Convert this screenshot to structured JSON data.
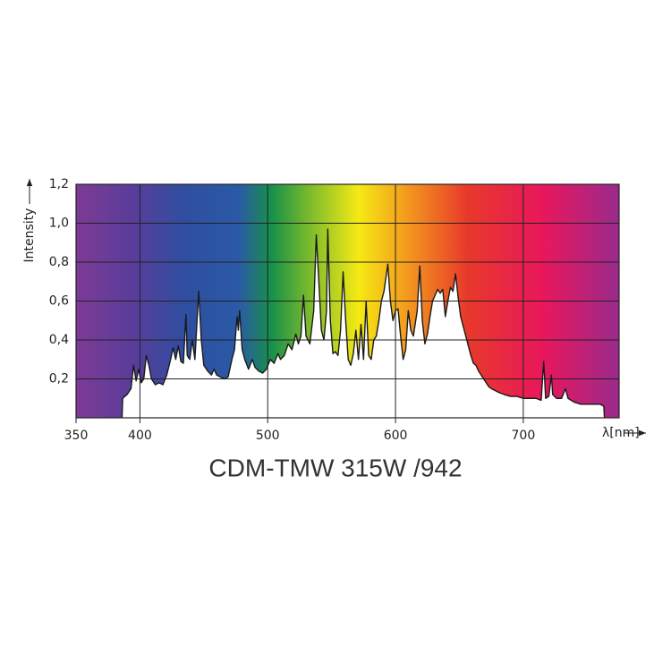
{
  "chart_data": {
    "type": "area",
    "title": "CDM-TMW 315W /942",
    "xlabel": "λ[nm]",
    "ylabel": "Intensity",
    "xlim": [
      350,
      775
    ],
    "ylim": [
      0,
      1.2
    ],
    "xticks": [
      350,
      400,
      500,
      600,
      700
    ],
    "yticks": [
      {
        "value": 0.2,
        "label": "0,2"
      },
      {
        "value": 0.4,
        "label": "0,4"
      },
      {
        "value": 0.6,
        "label": "0,6"
      },
      {
        "value": 0.8,
        "label": "0,8"
      },
      {
        "value": 1.0,
        "label": "1,0"
      },
      {
        "value": 1.2,
        "label": "1,2"
      }
    ],
    "grid": true,
    "series": [
      {
        "color": "#1a1a1a",
        "fill": "#ffffff",
        "x": [
          386,
          386.5,
          390,
          393,
          395,
          397,
          399,
          401,
          403,
          405,
          407,
          409,
          412,
          415,
          418,
          421,
          424,
          426,
          428,
          430,
          432,
          434,
          436,
          437,
          439,
          441,
          443,
          446,
          448,
          450,
          453,
          456,
          458,
          460,
          463,
          466,
          469,
          472,
          474,
          476,
          477,
          478,
          480,
          482,
          485,
          488,
          490,
          493,
          496,
          499,
          502,
          505,
          508,
          510,
          513,
          516,
          519,
          522,
          524,
          526,
          528,
          530,
          533,
          536,
          538,
          540,
          542,
          544,
          546,
          547,
          549,
          551,
          553,
          555,
          557,
          559,
          561,
          563,
          565,
          567,
          569,
          571,
          573,
          575,
          577,
          579,
          581,
          583,
          585,
          587,
          589,
          591,
          594,
          596,
          598,
          600,
          602,
          604,
          606,
          608,
          610,
          612,
          614,
          617,
          619,
          621,
          623,
          625,
          627,
          629,
          631,
          633,
          635,
          637,
          639,
          641,
          643,
          645,
          647,
          649,
          651,
          653,
          655,
          657,
          659,
          661,
          663,
          665,
          667,
          669,
          671,
          673,
          675,
          678,
          681,
          685,
          690,
          695,
          700,
          705,
          710,
          714,
          716,
          717.5,
          720,
          722,
          723,
          726,
          730,
          733,
          735,
          740,
          745,
          750,
          755,
          760,
          763,
          763.5
        ],
        "values": [
          0,
          0.1,
          0.12,
          0.15,
          0.27,
          0.19,
          0.25,
          0.18,
          0.2,
          0.32,
          0.27,
          0.2,
          0.17,
          0.18,
          0.17,
          0.22,
          0.3,
          0.36,
          0.3,
          0.37,
          0.29,
          0.28,
          0.53,
          0.32,
          0.3,
          0.4,
          0.3,
          0.65,
          0.4,
          0.27,
          0.24,
          0.22,
          0.25,
          0.22,
          0.21,
          0.2,
          0.21,
          0.3,
          0.35,
          0.52,
          0.45,
          0.55,
          0.35,
          0.3,
          0.25,
          0.3,
          0.26,
          0.24,
          0.23,
          0.25,
          0.3,
          0.28,
          0.33,
          0.3,
          0.32,
          0.38,
          0.35,
          0.43,
          0.38,
          0.42,
          0.63,
          0.42,
          0.38,
          0.55,
          0.94,
          0.7,
          0.45,
          0.4,
          0.55,
          0.97,
          0.5,
          0.33,
          0.34,
          0.32,
          0.45,
          0.75,
          0.5,
          0.3,
          0.27,
          0.33,
          0.45,
          0.3,
          0.48,
          0.3,
          0.6,
          0.32,
          0.3,
          0.4,
          0.42,
          0.5,
          0.6,
          0.65,
          0.79,
          0.6,
          0.5,
          0.55,
          0.56,
          0.42,
          0.3,
          0.35,
          0.55,
          0.45,
          0.42,
          0.55,
          0.78,
          0.5,
          0.38,
          0.43,
          0.52,
          0.6,
          0.63,
          0.66,
          0.64,
          0.66,
          0.52,
          0.6,
          0.67,
          0.65,
          0.74,
          0.62,
          0.52,
          0.47,
          0.42,
          0.37,
          0.32,
          0.28,
          0.27,
          0.24,
          0.22,
          0.2,
          0.18,
          0.16,
          0.15,
          0.14,
          0.13,
          0.12,
          0.11,
          0.11,
          0.1,
          0.1,
          0.1,
          0.09,
          0.29,
          0.1,
          0.11,
          0.22,
          0.12,
          0.1,
          0.1,
          0.15,
          0.1,
          0.08,
          0.07,
          0.07,
          0.07,
          0.07,
          0.06,
          0
        ]
      }
    ]
  }
}
